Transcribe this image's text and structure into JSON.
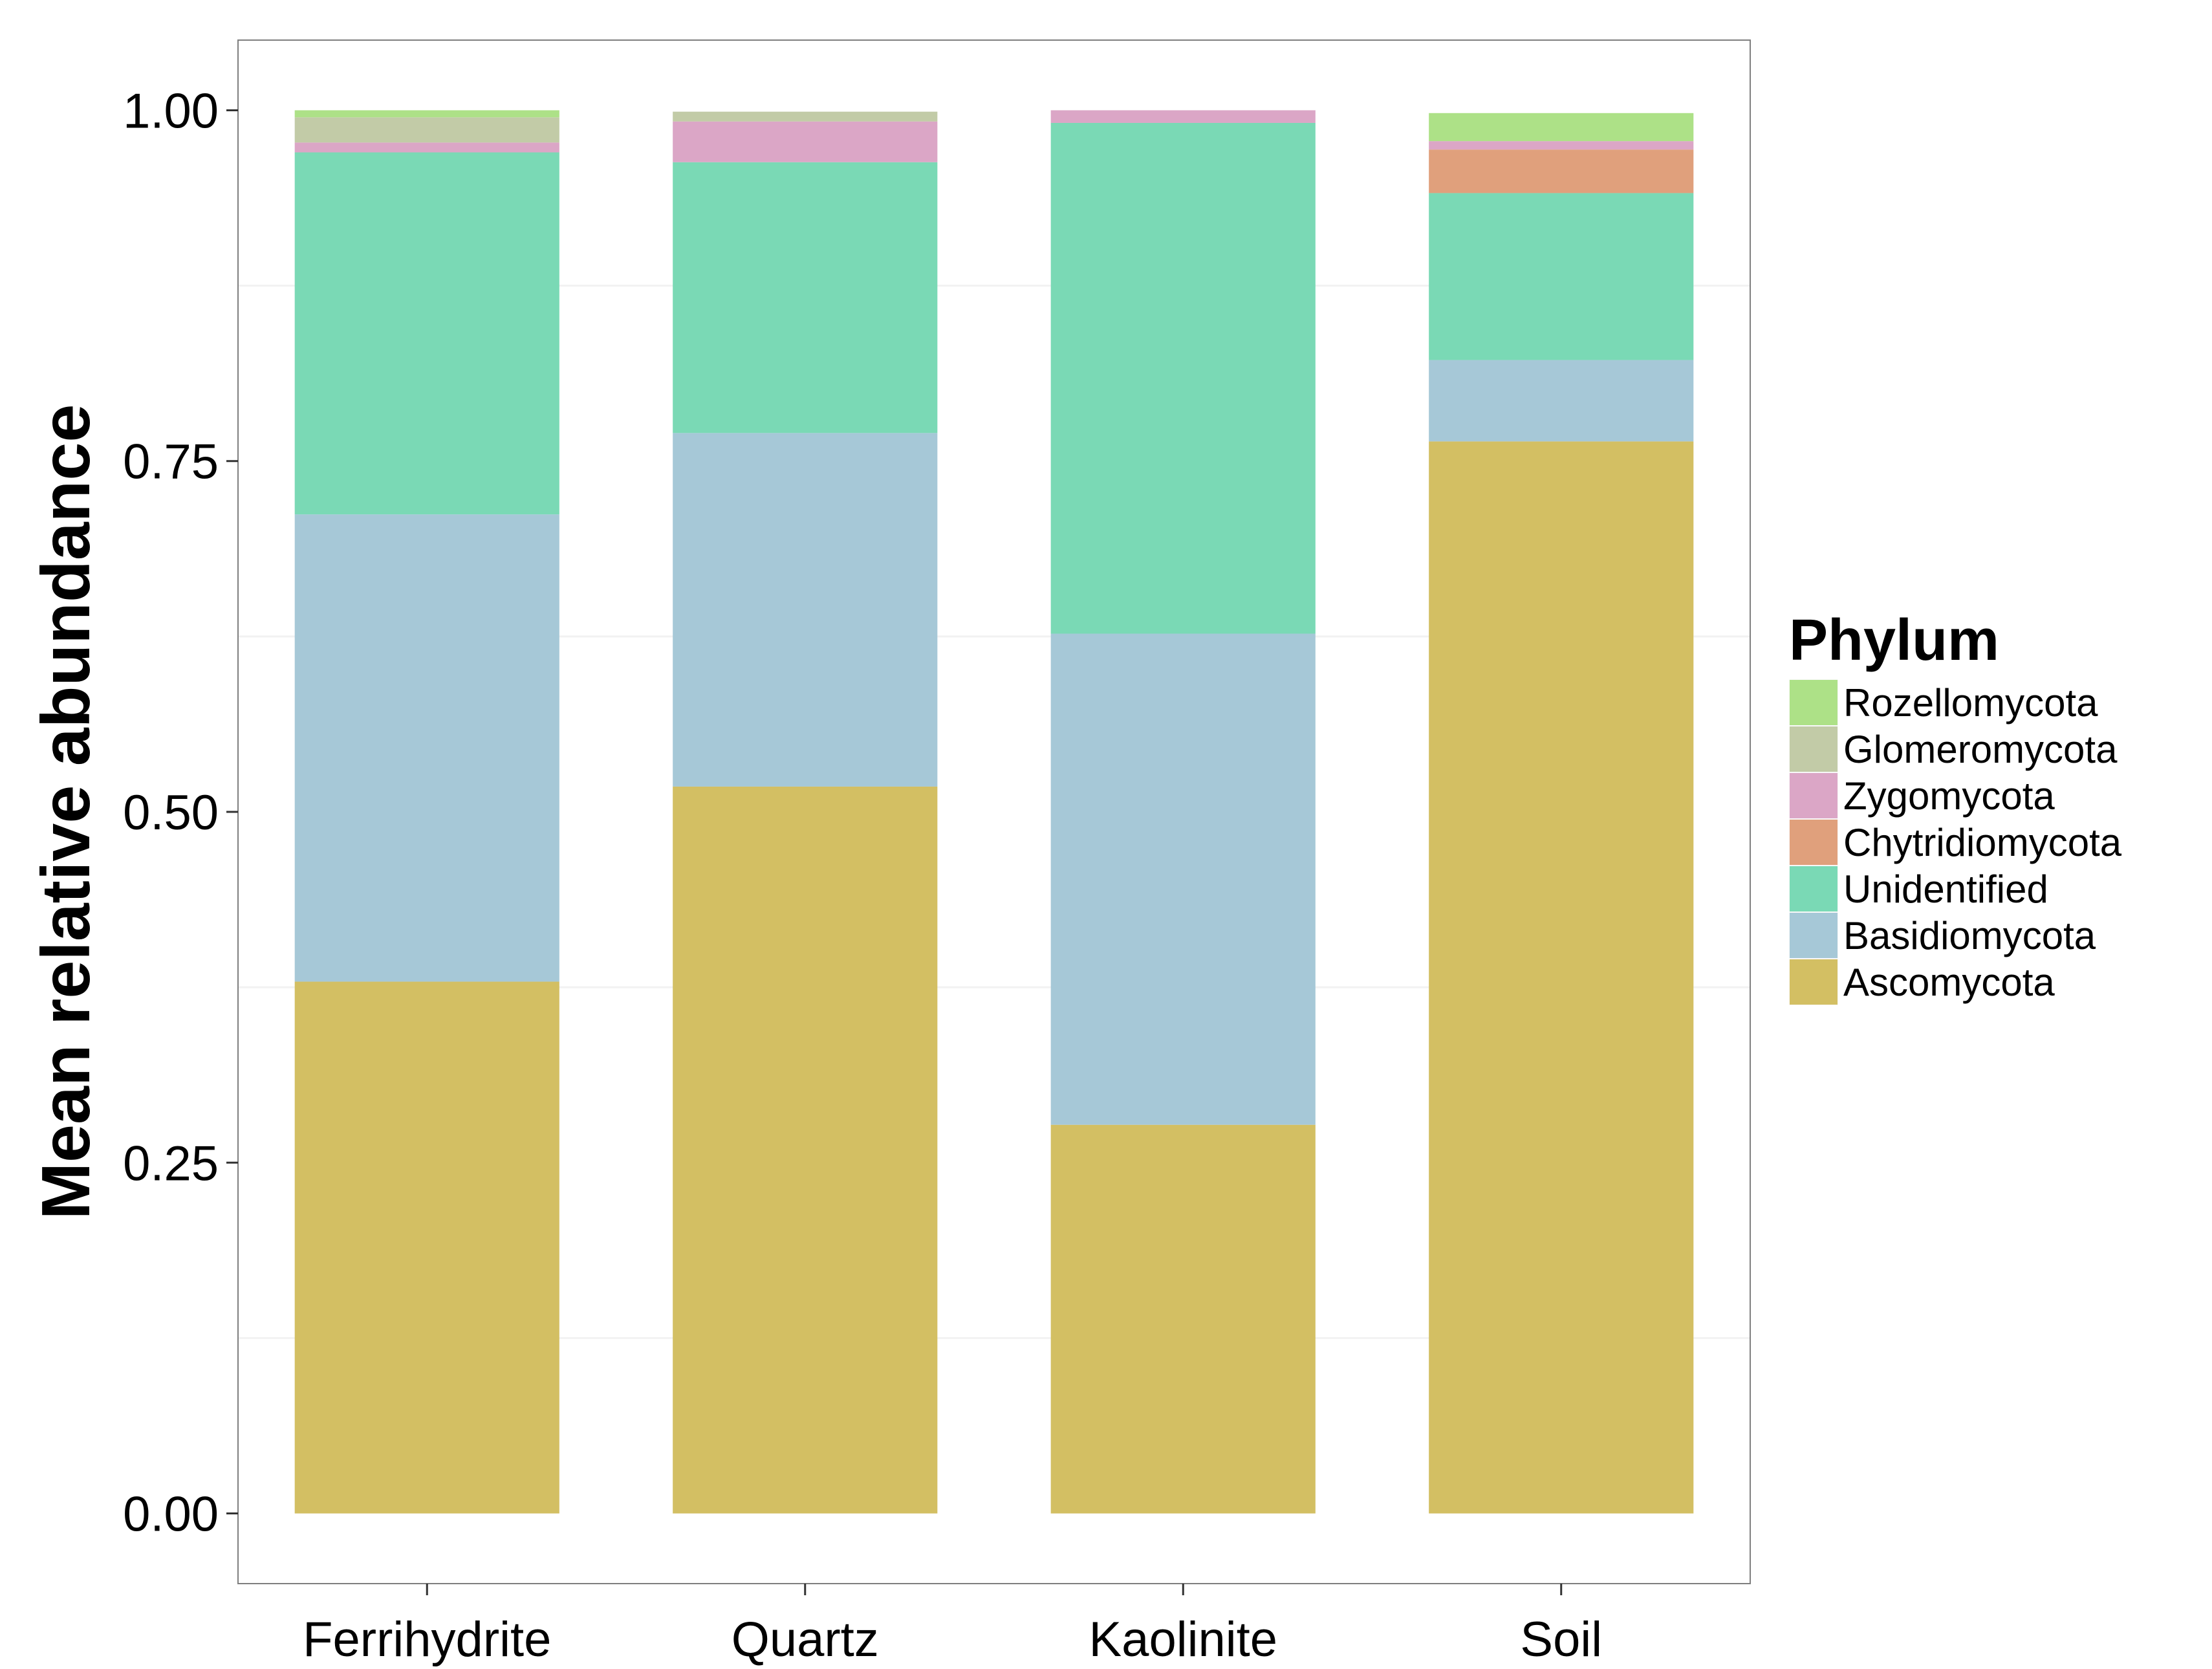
{
  "chart_data": {
    "type": "bar",
    "stacked": true,
    "categories": [
      "Ferrihydrite",
      "Quartz",
      "Kaolinite",
      "Soil"
    ],
    "ylabel": "Mean relative abundance",
    "xlabel": "",
    "ylim": [
      -0.05,
      1.05
    ],
    "yticks": [
      "0.00",
      "0.25",
      "0.50",
      "0.75",
      "1.00"
    ],
    "grid": true,
    "legend": {
      "title": "Phylum",
      "placement": "right",
      "order": [
        "Rozellomycota",
        "Glomeromycota",
        "Zygomycota",
        "Chytridiomycota",
        "Unidentified",
        "Basidiomycota",
        "Ascomycota"
      ]
    },
    "series": [
      {
        "name": "Ascomycota",
        "color": "#d3bf63",
        "values": [
          0.379,
          0.518,
          0.277,
          0.764
        ]
      },
      {
        "name": "Basidiomycota",
        "color": "#a6c8d7",
        "values": [
          0.333,
          0.252,
          0.35,
          0.058
        ]
      },
      {
        "name": "Unidentified",
        "color": "#7ad9b5",
        "values": [
          0.258,
          0.193,
          0.364,
          0.119
        ]
      },
      {
        "name": "Chytridiomycota",
        "color": "#e0a07c",
        "values": [
          0.0,
          0.0,
          0.0,
          0.031
        ]
      },
      {
        "name": "Zygomycota",
        "color": "#dba6c6",
        "values": [
          0.007,
          0.029,
          0.009,
          0.006
        ]
      },
      {
        "name": "Glomeromycota",
        "color": "#c2cba7",
        "values": [
          0.018,
          0.007,
          0.0,
          0.0
        ]
      },
      {
        "name": "Rozellomycota",
        "color": "#ade187",
        "values": [
          0.005,
          0.0,
          0.0,
          0.02
        ]
      }
    ]
  }
}
